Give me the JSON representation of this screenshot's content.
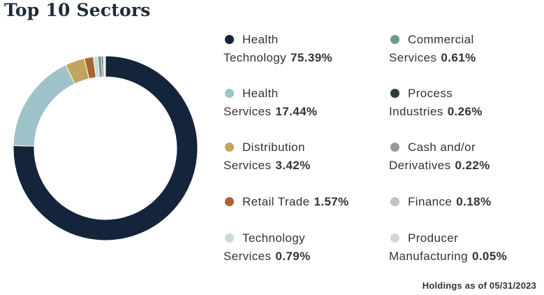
{
  "title": "Top 10 Sectors",
  "footer": "Holdings as of 05/31/2023",
  "chart_data": {
    "type": "pie",
    "variant": "donut",
    "title": "Top 10 Sectors",
    "unit": "%",
    "legend_placement": "right",
    "slices": [
      {
        "name": "Health Technology",
        "value": 75.39,
        "label": "75.39%",
        "color": "#14243a"
      },
      {
        "name": "Health Services",
        "value": 17.44,
        "label": "17.44%",
        "color": "#9ec3c9"
      },
      {
        "name": "Distribution Services",
        "value": 3.42,
        "label": "3.42%",
        "color": "#c2a55d"
      },
      {
        "name": "Retail Trade",
        "value": 1.57,
        "label": "1.57%",
        "color": "#a66534"
      },
      {
        "name": "Technology Services",
        "value": 0.79,
        "label": "0.79%",
        "color": "#c6dcda"
      },
      {
        "name": "Commercial Services",
        "value": 0.61,
        "label": "0.61%",
        "color": "#6d9a8e"
      },
      {
        "name": "Process Industries",
        "value": 0.26,
        "label": "0.26%",
        "color": "#2e4036"
      },
      {
        "name": "Cash and/or Derivatives",
        "value": 0.22,
        "label": "0.22%",
        "color": "#999999"
      },
      {
        "name": "Finance",
        "value": 0.18,
        "label": "0.18%",
        "color": "#c2c2c2"
      },
      {
        "name": "Producer Manufacturing",
        "value": 0.05,
        "label": "0.05%",
        "color": "#d6d6d6"
      }
    ]
  }
}
